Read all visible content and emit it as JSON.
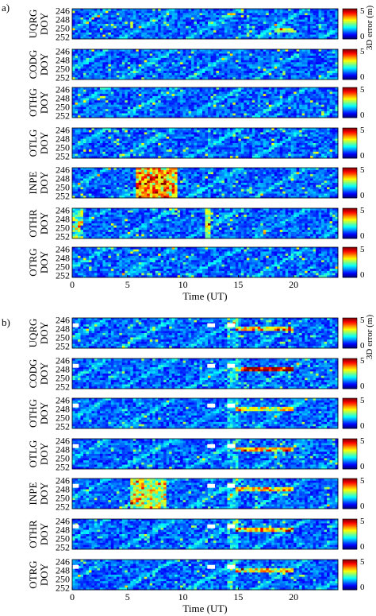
{
  "chart_data": [
    {
      "type": "heatmap",
      "panel_label": "a)",
      "colorbar": {
        "label": "3D error (m)",
        "min": 0,
        "max": 5,
        "ticks": [
          "5",
          "0"
        ]
      },
      "xlabel": "Time (UT)",
      "xlim": [
        0,
        24
      ],
      "xticks": [
        "0",
        "5",
        "10",
        "15",
        "20"
      ],
      "ylabel": "DOY",
      "yticks": [
        "246",
        "248",
        "250",
        "252"
      ],
      "ylim": [
        245.5,
        252.5
      ],
      "stations": [
        "UQRG",
        "CODG",
        "OTHG",
        "OTLG",
        "INPE",
        "OTHR",
        "OTRG"
      ]
    },
    {
      "type": "heatmap",
      "panel_label": "b)",
      "colorbar": {
        "label": "3D error (m)",
        "min": 0,
        "max": 5,
        "ticks": [
          "5",
          "0"
        ]
      },
      "xlabel": "Time (UT)",
      "xlim": [
        0,
        24
      ],
      "xticks": [
        "0",
        "5",
        "10",
        "15",
        "20"
      ],
      "ylabel": "DOY",
      "yticks": [
        "246",
        "248",
        "250",
        "252"
      ],
      "ylim": [
        245.5,
        252.5
      ],
      "stations": [
        "UQRG",
        "CODG",
        "OTHG",
        "OTLG",
        "INPE",
        "OTHR",
        "OTRG"
      ]
    }
  ]
}
